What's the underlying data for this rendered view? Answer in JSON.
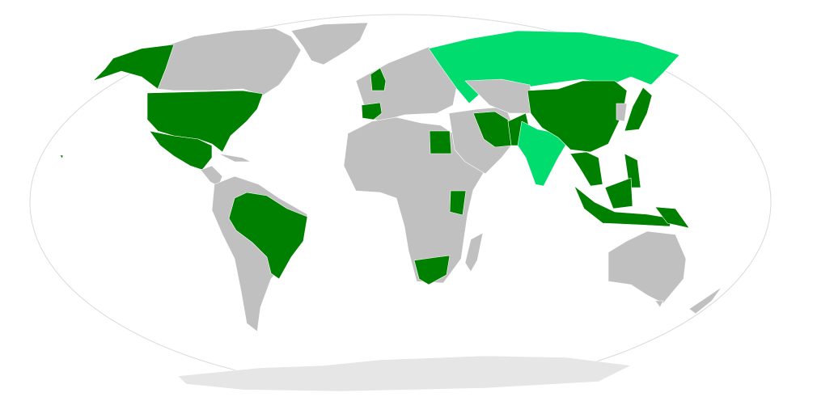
{
  "map": {
    "projection": "Robinson",
    "colors": {
      "background": "#ffffff",
      "frame": "#d9d9d9",
      "highlight_dark": "#008000",
      "highlight_light": "#00dd6e",
      "other_land": "#c0c0c0",
      "antarctica": "#e6e6e6"
    }
  }
}
